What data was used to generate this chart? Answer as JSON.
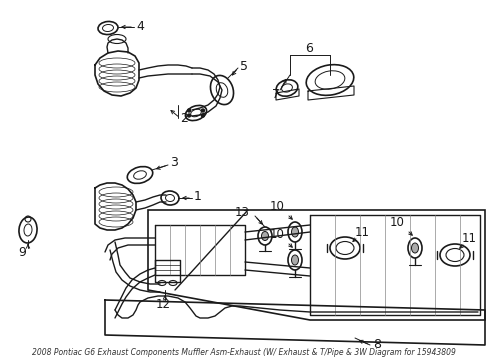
{
  "bg_color": "#ffffff",
  "line_color": "#1a1a1a",
  "figsize": [
    4.89,
    3.6
  ],
  "dpi": 100,
  "title": "2008 Pontiac G6 Exhaust Components Muffler Asm-Exhaust (W/ Exhaust & T/Pipe & 3W Diagram for 15943809"
}
